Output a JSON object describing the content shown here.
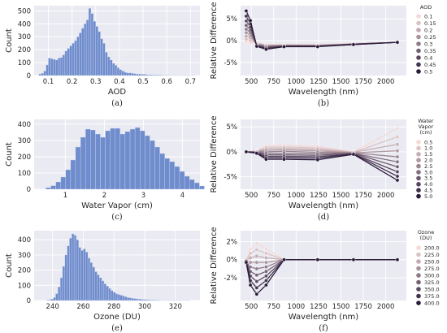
{
  "chart_data": [
    {
      "panel": "(a)",
      "type": "bar",
      "xlabel": "AOD",
      "ylabel": "Count",
      "xlim": [
        0.04,
        0.74
      ],
      "ylim": [
        0,
        540
      ],
      "xticks": [
        "0.1",
        "0.2",
        "0.3",
        "0.4",
        "0.5",
        "0.6",
        "0.7"
      ],
      "yticks": [
        "0",
        "100",
        "200",
        "300",
        "400",
        "500"
      ],
      "bin_start": 0.06,
      "bin_width": 0.01,
      "values": [
        12,
        18,
        35,
        82,
        135,
        130,
        125,
        120,
        135,
        140,
        160,
        190,
        210,
        230,
        250,
        270,
        300,
        330,
        365,
        400,
        430,
        520,
        480,
        420,
        380,
        340,
        285,
        250,
        180,
        145,
        120,
        95,
        80,
        60,
        45,
        35,
        25,
        20,
        20,
        18,
        15,
        12,
        12,
        10,
        10,
        8,
        6,
        6,
        5,
        5,
        4,
        4,
        3,
        3,
        3,
        2,
        2,
        2,
        2,
        2,
        1,
        1,
        1,
        1,
        1,
        1
      ]
    },
    {
      "panel": "(b)",
      "type": "line",
      "xlabel": "Wavelength (nm)",
      "ylabel": "Relative Difference",
      "xlim": [
        380,
        2230
      ],
      "ylim": [
        -8,
        8
      ],
      "xticks": [
        "500",
        "750",
        "1000",
        "1250",
        "1500",
        "1750",
        "2000"
      ],
      "yticks": [
        "-5%",
        "0%",
        "5%"
      ],
      "legend_title": "AOD",
      "legend_position": "right",
      "x": [
        443,
        490,
        560,
        665,
        865,
        1240,
        1640,
        2130
      ],
      "series": [
        {
          "name": "0.1",
          "values": [
            -0.3,
            -0.5,
            -0.5,
            -0.9,
            -0.9,
            -0.9,
            -0.7,
            -0.4
          ]
        },
        {
          "name": "0.15",
          "values": [
            0.3,
            0.0,
            -0.6,
            -1.0,
            -1.0,
            -1.0,
            -0.7,
            -0.4
          ]
        },
        {
          "name": "0.2",
          "values": [
            1.0,
            0.6,
            -0.7,
            -1.1,
            -1.0,
            -1.1,
            -0.8,
            -0.4
          ]
        },
        {
          "name": "0.25",
          "values": [
            1.8,
            1.2,
            -0.8,
            -1.2,
            -1.1,
            -1.1,
            -0.8,
            -0.4
          ]
        },
        {
          "name": "0.3",
          "values": [
            2.6,
            1.8,
            -0.9,
            -1.3,
            -1.2,
            -1.2,
            -0.8,
            -0.4
          ]
        },
        {
          "name": "0.35",
          "values": [
            3.5,
            2.4,
            -1.0,
            -1.5,
            -1.2,
            -1.2,
            -0.8,
            -0.4
          ]
        },
        {
          "name": "0.4",
          "values": [
            4.5,
            3.1,
            -1.1,
            -1.6,
            -1.3,
            -1.3,
            -0.8,
            -0.4
          ]
        },
        {
          "name": "0.45",
          "values": [
            5.6,
            3.8,
            -1.2,
            -1.8,
            -1.3,
            -1.3,
            -0.9,
            -0.4
          ]
        },
        {
          "name": "0.5",
          "values": [
            6.8,
            4.6,
            -1.3,
            -2.0,
            -1.4,
            -1.4,
            -0.9,
            -0.4
          ]
        }
      ]
    },
    {
      "panel": "(c)",
      "type": "bar",
      "xlabel": "Water Vapor (cm)",
      "ylabel": "Count",
      "xlim": [
        0.2,
        4.45
      ],
      "ylim": [
        0,
        430
      ],
      "xticks": [
        "1",
        "2",
        "3",
        "4"
      ],
      "yticks": [
        "0",
        "100",
        "200",
        "300",
        "400"
      ],
      "bin_start": 0.5,
      "bin_width": 0.127,
      "values": [
        10,
        22,
        45,
        75,
        120,
        180,
        260,
        320,
        370,
        365,
        340,
        320,
        360,
        375,
        375,
        340,
        355,
        370,
        380,
        360,
        330,
        300,
        260,
        220,
        190,
        170,
        140,
        110,
        80,
        60,
        40,
        20
      ]
    },
    {
      "panel": "(d)",
      "type": "line",
      "xlabel": "Wavelength (nm)",
      "ylabel": "Relative Difference",
      "xlim": [
        380,
        2230
      ],
      "ylim": [
        -7.5,
        6.5
      ],
      "xticks": [
        "500",
        "750",
        "1000",
        "1250",
        "1500",
        "1750",
        "2000"
      ],
      "yticks": [
        "-5%",
        "0%",
        "5%"
      ],
      "legend_title": "Water Vapor (cm)",
      "legend_position": "right",
      "x": [
        443,
        560,
        665,
        865,
        1240,
        1640,
        2130
      ],
      "series": [
        {
          "name": "0.5",
          "values": [
            0.0,
            0.2,
            1.2,
            1.3,
            1.1,
            0.0,
            4.7
          ]
        },
        {
          "name": "1.0",
          "values": [
            0.0,
            0.1,
            0.9,
            1.0,
            0.8,
            -0.1,
            3.0
          ]
        },
        {
          "name": "1.5",
          "values": [
            0.0,
            0.1,
            0.6,
            0.7,
            0.5,
            -0.1,
            1.5
          ]
        },
        {
          "name": "2.0",
          "values": [
            0.0,
            0.0,
            0.3,
            0.4,
            0.2,
            -0.2,
            0.2
          ]
        },
        {
          "name": "2.5",
          "values": [
            0.0,
            0.0,
            0.0,
            0.1,
            -0.1,
            -0.2,
            -1.0
          ]
        },
        {
          "name": "3.0",
          "values": [
            0.0,
            -0.1,
            -0.3,
            -0.3,
            -0.4,
            -0.3,
            -2.0
          ]
        },
        {
          "name": "3.5",
          "values": [
            0.0,
            -0.1,
            -0.6,
            -0.6,
            -0.7,
            -0.3,
            -3.0
          ]
        },
        {
          "name": "4.0",
          "values": [
            0.0,
            -0.2,
            -0.9,
            -0.9,
            -1.0,
            -0.4,
            -4.0
          ]
        },
        {
          "name": "4.5",
          "values": [
            0.0,
            -0.2,
            -1.2,
            -1.2,
            -1.3,
            -0.4,
            -4.9
          ]
        },
        {
          "name": "5.0",
          "values": [
            0.0,
            -0.3,
            -1.5,
            -1.5,
            -1.6,
            -0.5,
            -5.7
          ]
        }
      ]
    },
    {
      "panel": "(e)",
      "type": "bar",
      "xlabel": "Ozone (DU)",
      "ylabel": "Count",
      "xlim": [
        228,
        336
      ],
      "ylim": [
        0,
        460
      ],
      "xticks": [
        "240",
        "260",
        "280",
        "300",
        "320"
      ],
      "yticks": [
        "0",
        "100",
        "200",
        "300",
        "400"
      ],
      "bin_start": 236,
      "bin_width": 1.5,
      "values": [
        3,
        5,
        10,
        20,
        45,
        90,
        150,
        225,
        300,
        360,
        410,
        440,
        430,
        400,
        350,
        330,
        340,
        320,
        280,
        250,
        220,
        190,
        170,
        150,
        130,
        110,
        95,
        80,
        65,
        55,
        45,
        40,
        35,
        30,
        25,
        20,
        18,
        15,
        13,
        11,
        9,
        8,
        7,
        6,
        5,
        4,
        4,
        3,
        3,
        2,
        2,
        2,
        2,
        1,
        1,
        1,
        1,
        1,
        1,
        1,
        1,
        1
      ]
    },
    {
      "panel": "(f)",
      "type": "line",
      "xlabel": "Wavelength (nm)",
      "ylabel": "Relative Difference",
      "xlim": [
        380,
        2230
      ],
      "ylim": [
        -4.5,
        3.2
      ],
      "xticks": [
        "500",
        "750",
        "1000",
        "1250",
        "1500",
        "1750",
        "2000"
      ],
      "yticks": [
        "-2%",
        "0%",
        "2%"
      ],
      "legend_title": "Ozone (DU)",
      "legend_position": "right",
      "x": [
        443,
        490,
        560,
        665,
        865,
        1240,
        1640,
        2130
      ],
      "series": [
        {
          "name": "200.0",
          "values": [
            -0.1,
            1.2,
            1.8,
            1.2,
            0.0,
            0.0,
            0.0,
            0.0
          ]
        },
        {
          "name": "225.0",
          "values": [
            -0.1,
            0.7,
            1.1,
            0.7,
            0.0,
            0.0,
            0.0,
            0.0
          ]
        },
        {
          "name": "250.0",
          "values": [
            -0.1,
            0.2,
            0.4,
            0.2,
            0.0,
            0.0,
            0.0,
            0.0
          ]
        },
        {
          "name": "275.0",
          "values": [
            -0.1,
            -0.3,
            -0.3,
            -0.3,
            0.0,
            0.0,
            0.0,
            0.0
          ]
        },
        {
          "name": "300.0",
          "values": [
            -0.2,
            -0.8,
            -1.0,
            -0.8,
            0.0,
            0.0,
            0.0,
            0.0
          ]
        },
        {
          "name": "325.0",
          "values": [
            -0.2,
            -1.3,
            -1.7,
            -1.3,
            0.0,
            0.0,
            0.0,
            0.0
          ]
        },
        {
          "name": "350.0",
          "values": [
            -0.2,
            -1.8,
            -2.4,
            -1.8,
            0.0,
            0.0,
            0.0,
            0.0
          ]
        },
        {
          "name": "375.0",
          "values": [
            -0.2,
            -2.3,
            -3.1,
            -2.3,
            0.0,
            0.0,
            0.0,
            0.0
          ]
        },
        {
          "name": "400.0",
          "values": [
            -0.3,
            -2.8,
            -3.8,
            -2.8,
            0.0,
            0.0,
            0.0,
            0.0
          ]
        }
      ]
    }
  ],
  "colors": {
    "panel_bg": "#eaeaf2",
    "grid": "#ffffff",
    "bar_fill": "#6f8ccd",
    "bar_edge": "#d8def0",
    "palette_light": "#f4dad7",
    "palette_dark": "#2a1a3a"
  }
}
